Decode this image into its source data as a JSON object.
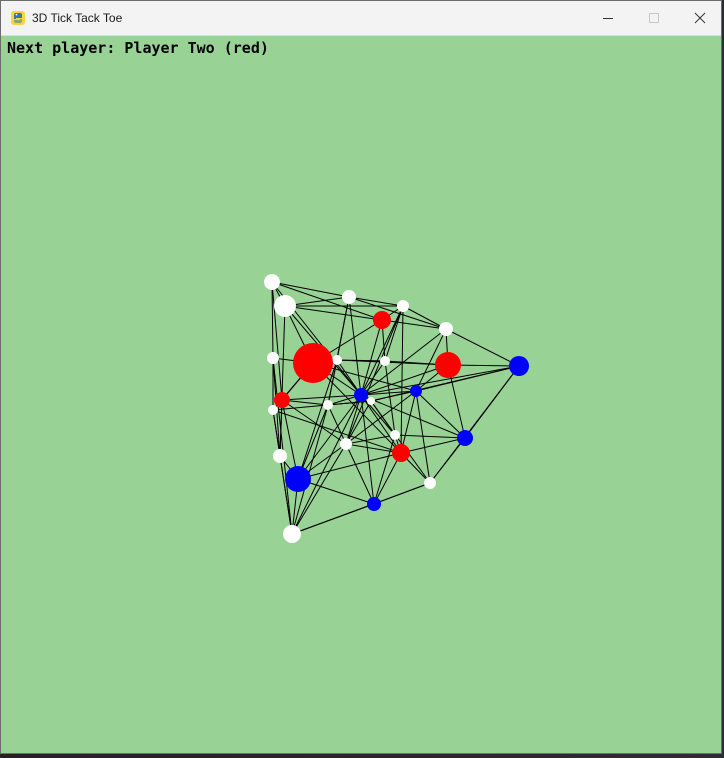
{
  "window": {
    "title": "3D Tick Tack Toe",
    "controls": {
      "minimize": "minimize",
      "maximize": "maximize",
      "close": "close"
    }
  },
  "game": {
    "status": "Next player: Player Two (red)",
    "colors": {
      "background": "#98d295",
      "empty": "#ffffff",
      "player_one": "#0000ff",
      "player_two": "#ff0000",
      "edge": "#000000"
    }
  }
}
